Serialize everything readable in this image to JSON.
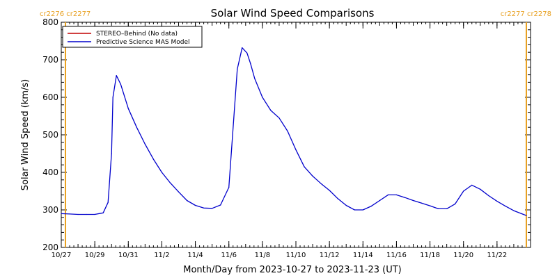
{
  "chart_data": {
    "type": "line",
    "title": "Solar Wind Speed Comparisons",
    "xlabel": "Month/Day from 2023-10-27 to 2023-11-23 (UT)",
    "ylabel": "Solar Wind Speed (km/s)",
    "xlim": [
      "2023-10-27",
      "2023-11-24"
    ],
    "ylim": [
      200,
      800
    ],
    "y_ticks": [
      200,
      300,
      400,
      500,
      600,
      700,
      800
    ],
    "x_ticks": [
      {
        "date": "2023-10-27",
        "label": "10/27"
      },
      {
        "date": "2023-10-29",
        "label": "10/29"
      },
      {
        "date": "2023-10-31",
        "label": "10/31"
      },
      {
        "date": "2023-11-02",
        "label": "11/2"
      },
      {
        "date": "2023-11-04",
        "label": "11/4"
      },
      {
        "date": "2023-11-06",
        "label": "11/6"
      },
      {
        "date": "2023-11-08",
        "label": "11/8"
      },
      {
        "date": "2023-11-10",
        "label": "11/10"
      },
      {
        "date": "2023-11-12",
        "label": "11/12"
      },
      {
        "date": "2023-11-14",
        "label": "11/14"
      },
      {
        "date": "2023-11-16",
        "label": "11/16"
      },
      {
        "date": "2023-11-18",
        "label": "11/18"
      },
      {
        "date": "2023-11-20",
        "label": "11/20"
      },
      {
        "date": "2023-11-22",
        "label": "11/22"
      }
    ],
    "carrington_markers": [
      {
        "date": "2023-10-27 06:00",
        "label": "cr2276 cr2277",
        "side": "left"
      },
      {
        "date": "2023-11-23 18:00",
        "label": "cr2277 cr2278",
        "side": "right"
      }
    ],
    "marker_color": "#e8a020",
    "grid": false,
    "legend_position": "top-left",
    "series": [
      {
        "name": "STEREO–Behind (No data)",
        "color": "#c00000",
        "x": [],
        "y": []
      },
      {
        "name": "Predictive Science MAS Model",
        "color": "#0000cc",
        "x": [
          "2023-10-27 00:00",
          "2023-10-27 12:00",
          "2023-10-28 00:00",
          "2023-10-28 12:00",
          "2023-10-29 00:00",
          "2023-10-29 12:00",
          "2023-10-29 19:00",
          "2023-10-30 00:00",
          "2023-10-30 02:00",
          "2023-10-30 07:00",
          "2023-10-30 13:00",
          "2023-10-31 00:00",
          "2023-10-31 12:00",
          "2023-11-01 00:00",
          "2023-11-01 12:00",
          "2023-11-02 00:00",
          "2023-11-02 12:00",
          "2023-11-03 00:00",
          "2023-11-03 12:00",
          "2023-11-04 00:00",
          "2023-11-04 12:00",
          "2023-11-05 00:00",
          "2023-11-05 12:00",
          "2023-11-06 00:00",
          "2023-11-06 12:00",
          "2023-11-06 19:00",
          "2023-11-07 02:00",
          "2023-11-07 07:00",
          "2023-11-07 13:00",
          "2023-11-08 00:00",
          "2023-11-08 12:00",
          "2023-11-09 00:00",
          "2023-11-09 12:00",
          "2023-11-10 00:00",
          "2023-11-10 12:00",
          "2023-11-11 00:00",
          "2023-11-11 12:00",
          "2023-11-12 00:00",
          "2023-11-12 12:00",
          "2023-11-13 00:00",
          "2023-11-13 12:00",
          "2023-11-14 00:00",
          "2023-11-14 12:00",
          "2023-11-15 00:00",
          "2023-11-15 12:00",
          "2023-11-16 00:00",
          "2023-11-16 12:00",
          "2023-11-17 00:00",
          "2023-11-17 12:00",
          "2023-11-18 00:00",
          "2023-11-18 12:00",
          "2023-11-19 00:00",
          "2023-11-19 12:00",
          "2023-11-20 00:00",
          "2023-11-20 12:00",
          "2023-11-21 00:00",
          "2023-11-21 12:00",
          "2023-11-22 00:00",
          "2023-11-22 12:00",
          "2023-11-23 00:00",
          "2023-11-23 18:00"
        ],
        "y": [
          290,
          289,
          288,
          288,
          288,
          292,
          320,
          450,
          600,
          658,
          635,
          570,
          520,
          475,
          435,
          400,
          372,
          348,
          325,
          312,
          305,
          304,
          313,
          360,
          675,
          732,
          718,
          690,
          650,
          600,
          565,
          545,
          510,
          460,
          415,
          390,
          370,
          352,
          330,
          312,
          300,
          300,
          310,
          325,
          340,
          340,
          333,
          325,
          318,
          311,
          303,
          303,
          316,
          350,
          366,
          355,
          338,
          323,
          310,
          298,
          285
        ]
      }
    ]
  }
}
